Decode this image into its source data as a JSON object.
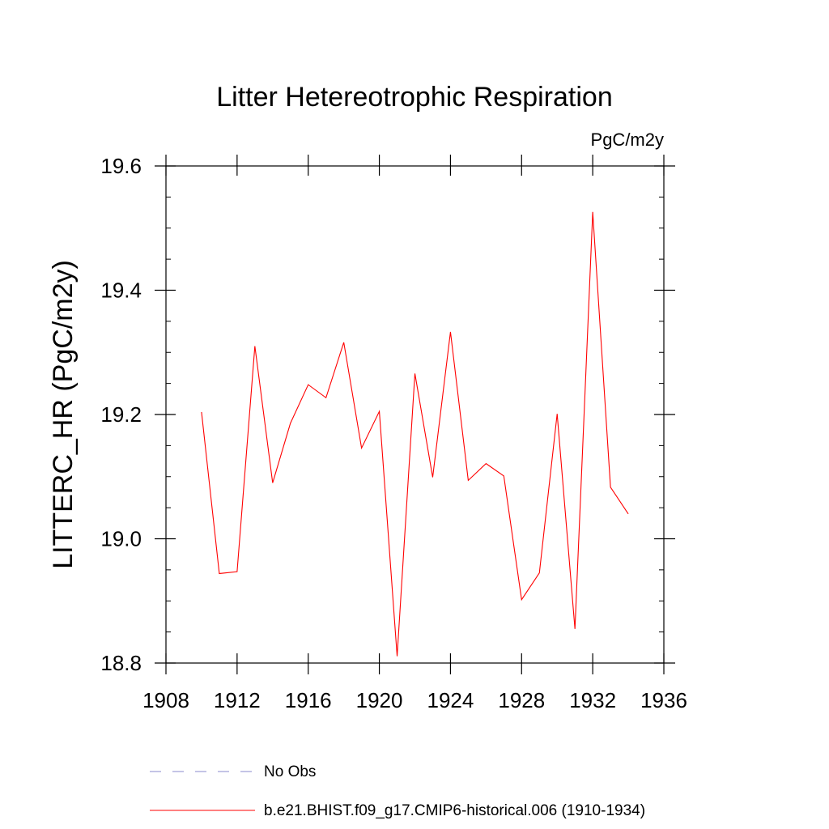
{
  "chart_data": {
    "type": "line",
    "title": "Litter Hetereotrophic Respiration",
    "units_label": "PgC/m2y",
    "ylabel": "LITTERC_HR  (PgC/m2y)",
    "xlabel": "",
    "xlim": [
      1908,
      1936
    ],
    "ylim": [
      18.8,
      19.6
    ],
    "x_ticks": [
      "1908",
      "1912",
      "1916",
      "1920",
      "1924",
      "1928",
      "1932",
      "1936"
    ],
    "y_ticks": [
      "18.8",
      "19.0",
      "19.2",
      "19.4",
      "19.6"
    ],
    "grid": false,
    "legend_position": "bottom",
    "legend": [
      {
        "label": "No Obs",
        "color": "#8888cc",
        "style": "dashed"
      },
      {
        "label": "b.e21.BHIST.f09_g17.CMIP6-historical.006 (1910-1934)",
        "color": "#ff0000",
        "style": "solid"
      }
    ],
    "series": [
      {
        "name": "b.e21.BHIST.f09_g17.CMIP6-historical.006 (1910-1934)",
        "color": "#ff0000",
        "x": [
          1910,
          1911,
          1912,
          1913,
          1914,
          1915,
          1916,
          1917,
          1918,
          1919,
          1920,
          1921,
          1922,
          1923,
          1924,
          1925,
          1926,
          1927,
          1928,
          1929,
          1930,
          1931,
          1932,
          1933,
          1934
        ],
        "y": [
          19.204,
          18.944,
          18.947,
          19.31,
          19.09,
          19.186,
          19.248,
          19.227,
          19.316,
          19.146,
          19.205,
          18.811,
          19.266,
          19.099,
          19.333,
          19.094,
          19.121,
          19.101,
          18.902,
          18.945,
          19.201,
          18.855,
          19.526,
          19.083,
          19.04
        ]
      }
    ]
  }
}
